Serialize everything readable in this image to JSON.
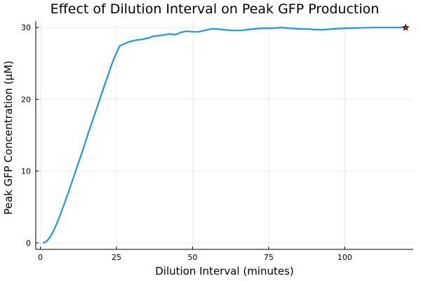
{
  "chart_data": {
    "type": "line",
    "title": "Effect of Dilution Interval on Peak GFP Production",
    "xlabel": "Dilution Interval (minutes)",
    "ylabel": "Peak GFP Concentration (μM)",
    "xlim": [
      -1.5,
      122.5
    ],
    "ylim": [
      -0.9,
      30.9
    ],
    "xticks": [
      0,
      25,
      50,
      75,
      100
    ],
    "xtick_labels": [
      "0",
      "25",
      "50",
      "75",
      "100"
    ],
    "yticks": [
      0,
      10,
      20,
      30
    ],
    "ytick_labels": [
      "0",
      "10",
      "20",
      "30"
    ],
    "grid": true,
    "legend": "none",
    "colors": {
      "line": "#1f97e0",
      "marker": "#c22a26"
    },
    "series": [
      {
        "x": [
          1,
          2,
          3,
          4,
          5,
          6,
          8,
          10,
          12,
          14,
          16,
          18,
          20,
          22,
          24,
          26,
          27,
          28,
          29,
          30,
          31,
          32,
          33,
          34,
          35,
          36,
          37,
          38,
          39,
          40,
          41,
          42,
          43,
          44,
          45,
          46,
          48,
          50,
          52,
          54,
          56,
          58,
          60,
          63,
          66,
          68,
          70,
          73,
          76,
          79,
          82,
          85,
          88,
          90,
          93,
          96,
          100,
          105,
          110,
          115,
          120
        ],
        "y": [
          0.0,
          0.2,
          0.7,
          1.4,
          2.3,
          3.3,
          5.6,
          8.0,
          10.5,
          13.0,
          15.6,
          18.1,
          20.6,
          23.1,
          25.5,
          27.4,
          27.6,
          27.8,
          28.0,
          28.1,
          28.2,
          28.3,
          28.3,
          28.4,
          28.5,
          28.6,
          28.8,
          28.8,
          28.9,
          28.9,
          29.0,
          29.1,
          29.1,
          29.0,
          29.1,
          29.3,
          29.5,
          29.4,
          29.4,
          29.6,
          29.8,
          29.8,
          29.7,
          29.6,
          29.6,
          29.7,
          29.8,
          29.9,
          29.9,
          30.0,
          29.9,
          29.8,
          29.8,
          29.7,
          29.7,
          29.8,
          29.9,
          29.95,
          30.0,
          30.0,
          30.0
        ]
      }
    ],
    "highlight_point": {
      "x": 120,
      "y": 30.0,
      "marker": "star"
    }
  }
}
